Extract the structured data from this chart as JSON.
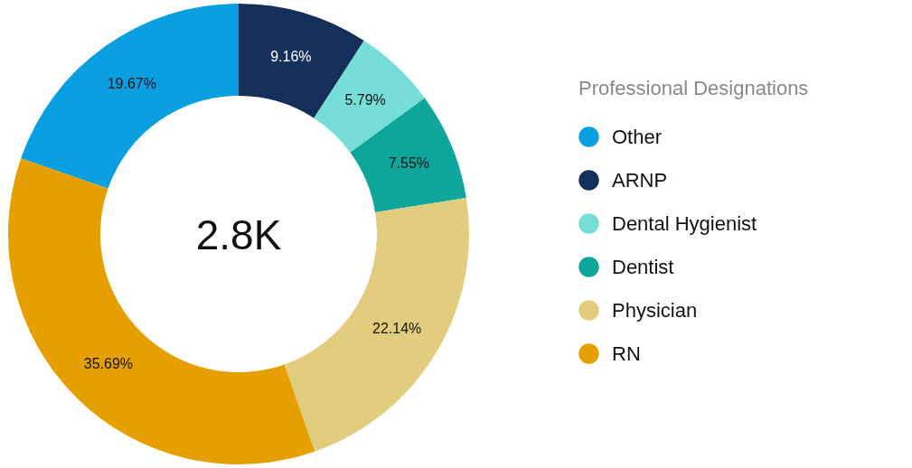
{
  "chart_data": {
    "type": "donut",
    "legend_title": "Professional Designations",
    "legend": "right",
    "categories": [
      "Other",
      "ARNP",
      "Dental Hygienist",
      "Dentist",
      "Physician",
      "RN"
    ],
    "values": [
      19.67,
      9.16,
      5.79,
      7.55,
      22.14,
      35.69
    ],
    "value_labels": [
      "19.67%",
      "9.16%",
      "5.79%",
      "7.55%",
      "22.14%",
      "35.69%"
    ],
    "colors": [
      "#0a9fe0",
      "#14305a",
      "#76ddd8",
      "#0ea59a",
      "#e2cd7e",
      "#e5a000"
    ],
    "annotations": [
      "2.8K"
    ]
  }
}
